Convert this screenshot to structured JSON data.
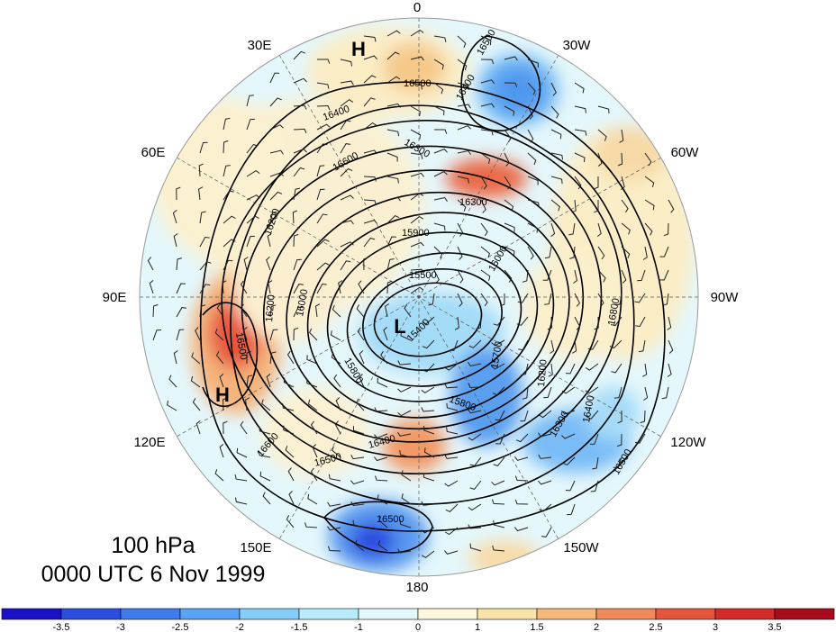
{
  "map": {
    "longitude_labels": [
      {
        "text": "0"
      },
      {
        "text": "30W"
      },
      {
        "text": "60W"
      },
      {
        "text": "90W"
      },
      {
        "text": "120W"
      },
      {
        "text": "150W"
      },
      {
        "text": "180"
      },
      {
        "text": "150E"
      },
      {
        "text": "120E"
      },
      {
        "text": "90E"
      },
      {
        "text": "60E"
      },
      {
        "text": "30E"
      }
    ],
    "high_low_markers": [
      {
        "text": "H"
      },
      {
        "text": "H"
      },
      {
        "text": "L"
      }
    ],
    "contour_labels": [
      {
        "text": "16500"
      },
      {
        "text": "16500"
      },
      {
        "text": "16400"
      },
      {
        "text": "16400"
      },
      {
        "text": "15900"
      },
      {
        "text": "16300"
      },
      {
        "text": "16300"
      },
      {
        "text": "16000"
      },
      {
        "text": "16200"
      },
      {
        "text": "16500"
      },
      {
        "text": "15500"
      },
      {
        "text": "15400"
      },
      {
        "text": "15700"
      },
      {
        "text": "15800"
      },
      {
        "text": "16200"
      },
      {
        "text": "16400"
      },
      {
        "text": "16300"
      },
      {
        "text": "16500"
      },
      {
        "text": "16400"
      },
      {
        "text": "16500"
      },
      {
        "text": "16600"
      },
      {
        "text": "16500"
      },
      {
        "text": "16800"
      },
      {
        "text": "15800"
      },
      {
        "text": "16000"
      },
      {
        "text": "16200"
      },
      {
        "text": "16600"
      }
    ]
  },
  "title": {
    "level": "100 hPa",
    "time": "0000 UTC 6 Nov 1999"
  },
  "colorbar": {
    "colors": [
      "#1a10c8",
      "#2b4de0",
      "#3f7bec",
      "#5aa2f4",
      "#86cdfa",
      "#b8ecfc",
      "#e2f8fc",
      "#fdf7dc",
      "#fae3a8",
      "#f6b97c",
      "#f08a5c",
      "#e8553e",
      "#d42a2a",
      "#a80c1c"
    ],
    "tick_labels": [
      "-3.5",
      "-3",
      "-2.5",
      "-2",
      "-1.5",
      "-1",
      "0",
      "1",
      "1.5",
      "2",
      "2.5",
      "3",
      "3.5"
    ]
  }
}
